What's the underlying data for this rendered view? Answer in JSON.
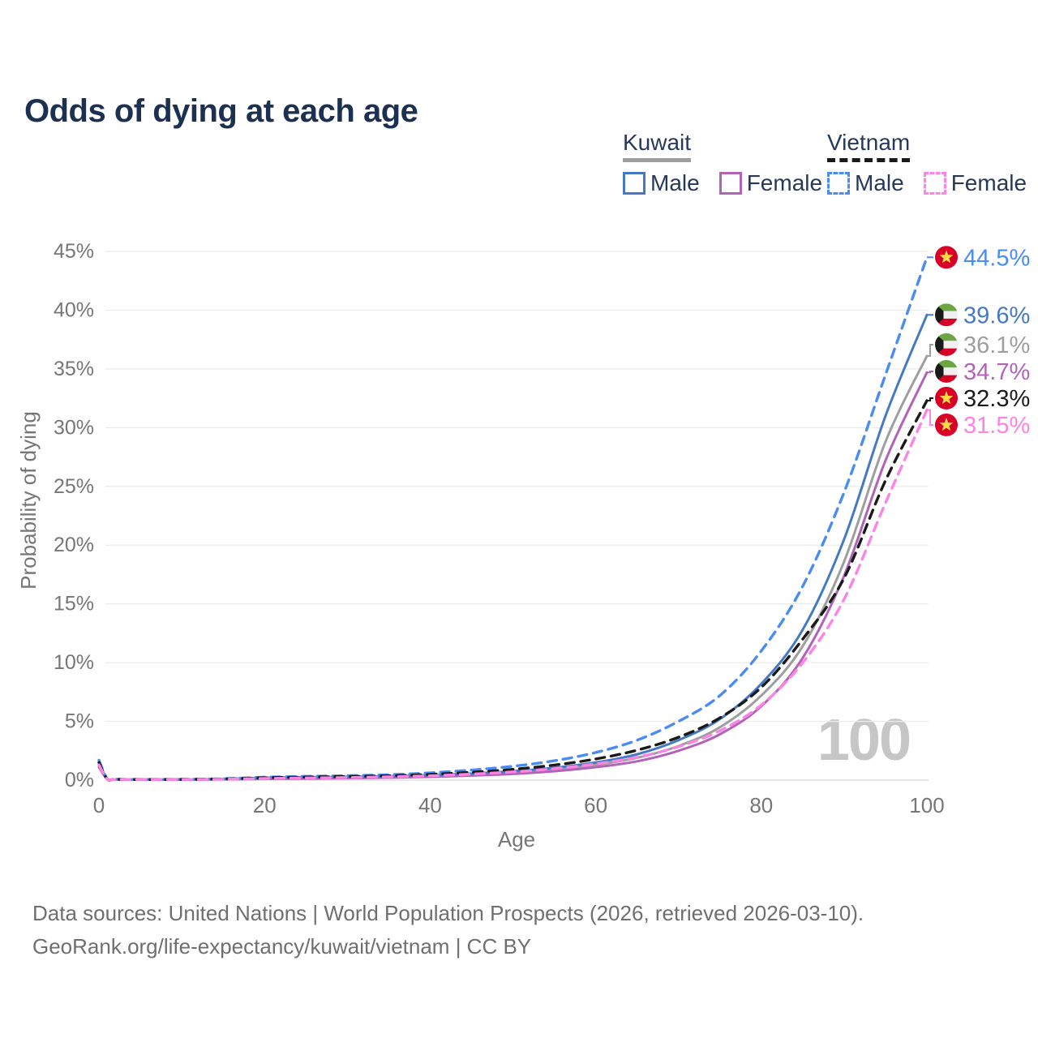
{
  "title": "Odds of dying at each age",
  "watermark": "100",
  "legend": {
    "kuwait": {
      "label": "Kuwait",
      "male_label": "Male",
      "female_label": "Female"
    },
    "vietnam": {
      "label": "Vietnam",
      "male_label": "Male",
      "female_label": "Female"
    }
  },
  "footer": {
    "line1": "Data sources: United Nations | World Population Prospects (2026, retrieved 2026-03-10).",
    "line2": "GeoRank.org/life-expectancy/kuwait/vietnam | CC BY"
  },
  "chart_data": {
    "type": "line",
    "title": "Odds of dying at each age",
    "xlabel": "Age",
    "ylabel": "Probability of dying",
    "xlim": [
      0,
      100
    ],
    "ylim": [
      0,
      45
    ],
    "grid": true,
    "legend_position": "top-right",
    "x_ticks": [
      0,
      20,
      40,
      60,
      80,
      100
    ],
    "y_ticks": [
      "0%",
      "5%",
      "10%",
      "15%",
      "20%",
      "25%",
      "30%",
      "35%",
      "40%",
      "45%"
    ],
    "ages": [
      0,
      1,
      2,
      5,
      10,
      15,
      20,
      25,
      30,
      35,
      40,
      45,
      50,
      55,
      60,
      65,
      70,
      75,
      80,
      85,
      90,
      95,
      100
    ],
    "series": [
      {
        "id": "vietnam_male",
        "name": "Vietnam Male",
        "country": "Vietnam",
        "sex": "Male",
        "style": "dashed",
        "color": "#4a8cf2",
        "flag": "vietnam",
        "end_label": "44.5%",
        "end_value": 44.5,
        "values": [
          1.7,
          0.12,
          0.08,
          0.06,
          0.07,
          0.12,
          0.25,
          0.32,
          0.38,
          0.46,
          0.62,
          0.86,
          1.18,
          1.65,
          2.35,
          3.4,
          5.0,
          7.2,
          11.0,
          16.5,
          24.5,
          34.5,
          44.5
        ]
      },
      {
        "id": "kuwait_male",
        "name": "Kuwait Male",
        "country": "Kuwait",
        "sex": "Male",
        "style": "solid",
        "color": "#4579c4",
        "flag": "kuwait",
        "end_label": "39.6%",
        "end_value": 39.6,
        "values": [
          1.5,
          0.1,
          0.07,
          0.05,
          0.06,
          0.1,
          0.2,
          0.25,
          0.28,
          0.33,
          0.42,
          0.56,
          0.76,
          1.05,
          1.5,
          2.2,
          3.4,
          5.2,
          8.2,
          12.8,
          20.5,
          31.0,
          39.6
        ]
      },
      {
        "id": "kuwait_total",
        "name": "Kuwait",
        "country": "Kuwait",
        "sex": "Both",
        "style": "solid",
        "color": "#9e9e9e",
        "flag": "kuwait",
        "end_label": "36.1%",
        "end_value": 36.1,
        "values": [
          1.3,
          0.09,
          0.06,
          0.04,
          0.05,
          0.08,
          0.15,
          0.19,
          0.22,
          0.27,
          0.34,
          0.47,
          0.64,
          0.9,
          1.3,
          1.9,
          2.9,
          4.5,
          7.2,
          11.4,
          18.6,
          28.8,
          36.1
        ]
      },
      {
        "id": "kuwait_female",
        "name": "Kuwait Female",
        "country": "Kuwait",
        "sex": "Female",
        "style": "solid",
        "color": "#b163b8",
        "flag": "kuwait",
        "end_label": "34.7%",
        "end_value": 34.7,
        "values": [
          1.1,
          0.08,
          0.05,
          0.04,
          0.04,
          0.06,
          0.1,
          0.13,
          0.16,
          0.21,
          0.28,
          0.39,
          0.53,
          0.76,
          1.1,
          1.6,
          2.5,
          3.9,
          6.3,
          10.4,
          17.4,
          27.2,
          34.7
        ]
      },
      {
        "id": "vietnam_total",
        "name": "Vietnam",
        "country": "Vietnam",
        "sex": "Both",
        "style": "dashed",
        "color": "#1a1a1a",
        "flag": "vietnam",
        "end_label": "32.3%",
        "end_value": 32.3,
        "values": [
          1.5,
          0.11,
          0.07,
          0.05,
          0.06,
          0.1,
          0.2,
          0.26,
          0.31,
          0.37,
          0.49,
          0.67,
          0.92,
          1.28,
          1.8,
          2.55,
          3.65,
          5.3,
          7.9,
          12.0,
          17.2,
          25.5,
          32.3
        ]
      },
      {
        "id": "vietnam_female",
        "name": "Vietnam Female",
        "country": "Vietnam",
        "sex": "Female",
        "style": "dashed",
        "color": "#fb84e4",
        "flag": "vietnam",
        "end_label": "31.5%",
        "end_value": 31.5,
        "values": [
          1.3,
          0.1,
          0.06,
          0.05,
          0.05,
          0.08,
          0.14,
          0.18,
          0.22,
          0.28,
          0.37,
          0.51,
          0.7,
          0.97,
          1.38,
          1.95,
          2.85,
          4.2,
          6.4,
          10.0,
          15.4,
          23.6,
          31.5
        ]
      }
    ],
    "flag_colors": {
      "vietnam_red": "#D80027",
      "vietnam_star": "#FFDA44",
      "kuwait_green": "#6DA544",
      "kuwait_white": "#F0F0F0",
      "kuwait_red": "#D80027",
      "kuwait_black": "#1a1a1a"
    },
    "grid_color": "#ececec",
    "baseline_color": "#d8d8d8",
    "axis_text_color": "#767676"
  }
}
